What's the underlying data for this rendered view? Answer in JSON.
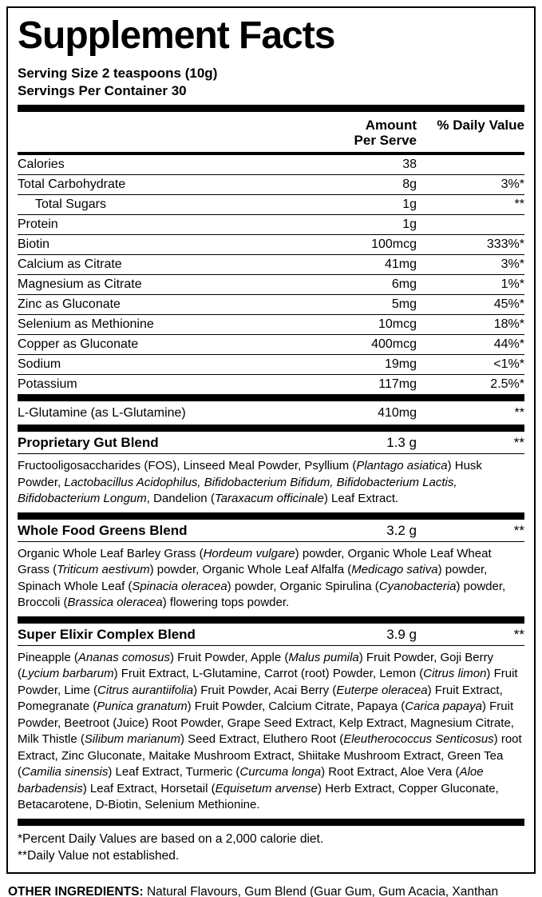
{
  "header": {
    "title": "Supplement Facts",
    "serving_size": "Serving Size 2 teaspoons (10g)",
    "servings_per_container": "Servings Per Container 30"
  },
  "columns": {
    "amount_line1": "Amount",
    "amount_line2": "Per Serve",
    "daily_value": "% Daily Value"
  },
  "nutrients": [
    {
      "name": "Calories",
      "amount": "38",
      "dv": ""
    },
    {
      "name": "Total Carbohydrate",
      "amount": "8g",
      "dv": "3%*"
    },
    {
      "name": "Total Sugars",
      "amount": "1g",
      "dv": "**"
    },
    {
      "name": "Protein",
      "amount": "1g",
      "dv": ""
    },
    {
      "name": "Biotin",
      "amount": "100mcg",
      "dv": "333%*"
    },
    {
      "name": "Calcium as Citrate",
      "amount": "41mg",
      "dv": "3%*"
    },
    {
      "name": "Magnesium as Citrate",
      "amount": "6mg",
      "dv": "1%*"
    },
    {
      "name": "Zinc as Gluconate",
      "amount": "5mg",
      "dv": "45%*"
    },
    {
      "name": "Selenium as Methionine",
      "amount": "10mcg",
      "dv": "18%*"
    },
    {
      "name": "Copper as Gluconate",
      "amount": "400mcg",
      "dv": "44%*"
    },
    {
      "name": "Sodium",
      "amount": "19mg",
      "dv": "<1%*"
    },
    {
      "name": "Potassium",
      "amount": "117mg",
      "dv": "2.5%*"
    }
  ],
  "glutamine": {
    "name": "L-Glutamine (as L-Glutamine)",
    "amount": "410mg",
    "dv": "**"
  },
  "blends": [
    {
      "name": "Proprietary Gut Blend",
      "amount": "1.3 g",
      "dv": "**",
      "description": [
        {
          "t": "Fructooligosaccharides (FOS), Linseed Meal Powder, Psyllium ("
        },
        {
          "t": "Plantago asiatica",
          "i": true
        },
        {
          "t": ") Husk Powder, "
        },
        {
          "t": "Lactobacillus Acidophilus, Bifidobacterium Bifidum, Bifidobacterium Lactis, Bifidobacterium Longum",
          "i": true
        },
        {
          "t": ", Dandelion ("
        },
        {
          "t": "Taraxacum officinale",
          "i": true
        },
        {
          "t": ") Leaf Extract."
        }
      ]
    },
    {
      "name": "Whole Food Greens Blend",
      "amount": "3.2 g",
      "dv": "**",
      "description": [
        {
          "t": "Organic Whole Leaf Barley Grass ("
        },
        {
          "t": "Hordeum vulgare",
          "i": true
        },
        {
          "t": ") powder, Organic Whole Leaf Wheat Grass ("
        },
        {
          "t": "Triticum aestivum",
          "i": true
        },
        {
          "t": ") powder, Organic Whole Leaf Alfalfa ("
        },
        {
          "t": "Medicago sativa",
          "i": true
        },
        {
          "t": ") powder, Spinach Whole Leaf ("
        },
        {
          "t": "Spinacia oleracea",
          "i": true
        },
        {
          "t": ") powder, Organic Spirulina ("
        },
        {
          "t": "Cyanobacteria",
          "i": true
        },
        {
          "t": ") powder, Broccoli ("
        },
        {
          "t": "Brassica oleracea",
          "i": true
        },
        {
          "t": ") flowering tops powder."
        }
      ]
    },
    {
      "name": "Super Elixir Complex Blend",
      "amount": "3.9 g",
      "dv": "**",
      "description": [
        {
          "t": "Pineapple ("
        },
        {
          "t": "Ananas comosus",
          "i": true
        },
        {
          "t": ") Fruit Powder, Apple ("
        },
        {
          "t": "Malus pumila",
          "i": true
        },
        {
          "t": ") Fruit Powder, Goji Berry ("
        },
        {
          "t": "Lycium barbarum",
          "i": true
        },
        {
          "t": ") Fruit Extract, L-Glutamine, Carrot (root) Powder, Lemon ("
        },
        {
          "t": "Citrus limon",
          "i": true
        },
        {
          "t": ") Fruit Powder, Lime ("
        },
        {
          "t": "Citrus aurantiifolia",
          "i": true
        },
        {
          "t": ") Fruit Powder, Acai Berry ("
        },
        {
          "t": "Euterpe oleracea",
          "i": true
        },
        {
          "t": ") Fruit Extract, Pomegranate ("
        },
        {
          "t": "Punica granatum",
          "i": true
        },
        {
          "t": ") Fruit Powder, Calcium Citrate, Papaya ("
        },
        {
          "t": "Carica papaya",
          "i": true
        },
        {
          "t": ") Fruit Powder, Beetroot (Juice) Root Powder, Grape Seed Extract, Kelp Extract, Magnesium Citrate, Milk Thistle ("
        },
        {
          "t": "Silibum marianum",
          "i": true
        },
        {
          "t": ") Seed Extract, Eluthero Root ("
        },
        {
          "t": "Eleutherococcus Senticosus",
          "i": true
        },
        {
          "t": ") root Extract, Zinc Gluconate,  Maitake Mushroom Extract, Shiitake Mushroom Extract, Green Tea ("
        },
        {
          "t": "Camilia sinensis",
          "i": true
        },
        {
          "t": ") Leaf Extract, Turmeric ("
        },
        {
          "t": "Curcuma longa",
          "i": true
        },
        {
          "t": ") Root Extract, Aloe Vera ("
        },
        {
          "t": "Aloe barbadensis",
          "i": true
        },
        {
          "t": ") Leaf Extract, Horsetail ("
        },
        {
          "t": "Equisetum arvense",
          "i": true
        },
        {
          "t": ") Herb Extract, Copper Gluconate, Betacarotene, D-Biotin, Selenium Methionine."
        }
      ]
    }
  ],
  "footnotes": [
    "*Percent Daily Values are based on a 2,000 calorie diet.",
    "**Daily Value not established."
  ],
  "other_ingredients": {
    "label": "OTHER INGREDIENTS:",
    "text": " Natural Flavours, Gum Blend (Guar Gum, Gum Acacia, Xanthan Gum), Xylitol, Pectin and Steviol Glycosides."
  }
}
